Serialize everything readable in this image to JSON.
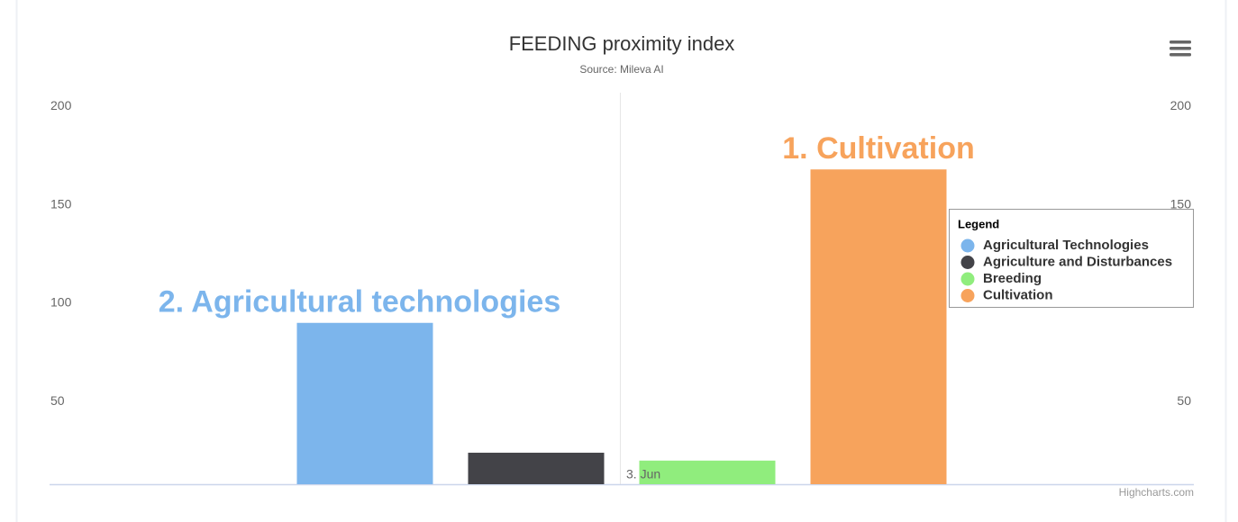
{
  "chart_data": {
    "type": "column",
    "title": "FEEDING proximity index",
    "subtitle": "Source: Mileva AI",
    "categories": [
      "3. Jun"
    ],
    "series": [
      {
        "name": "Agricultural Technologies",
        "color": "#7cb5ec",
        "values": [
          90
        ]
      },
      {
        "name": "Agriculture and Disturbances",
        "color": "#434348",
        "values": [
          24
        ]
      },
      {
        "name": "Breeding",
        "color": "#90ed7d",
        "values": [
          20
        ]
      },
      {
        "name": "Cultivation",
        "color": "#f7a35c",
        "values": [
          168
        ]
      }
    ],
    "ylim": [
      8,
      207
    ],
    "yticks": [
      50,
      100,
      150,
      200
    ],
    "y2lim": [
      8,
      207
    ],
    "y2ticks": [
      50,
      100,
      150,
      200
    ],
    "legend_title": "Legend",
    "legend_position": "right",
    "annotations": [
      {
        "text": "2. Agricultural technologies",
        "color": "#7cb5ec"
      },
      {
        "text": "1. Cultivation",
        "color": "#f7a35c"
      }
    ],
    "credits": "Highcharts.com"
  }
}
